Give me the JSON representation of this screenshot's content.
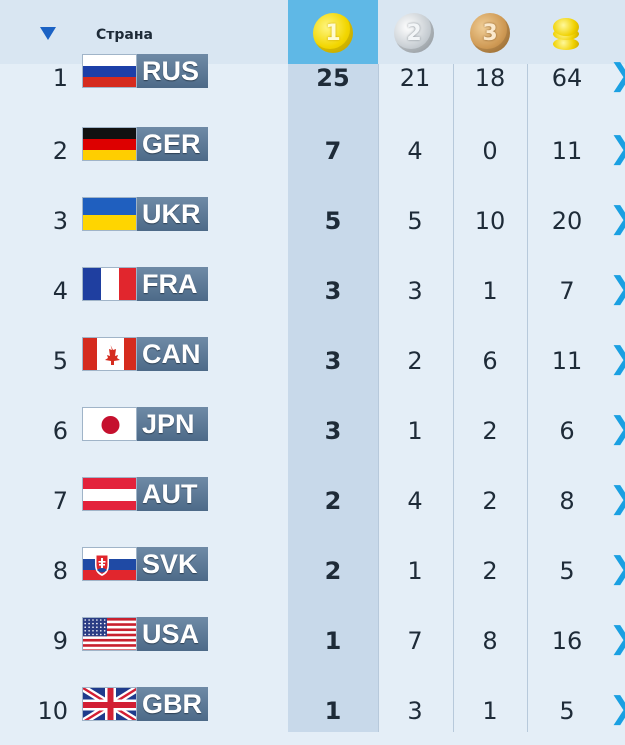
{
  "header": {
    "sort_icon": "triangle-down-icon",
    "country_label": "Страна",
    "medals": [
      {
        "name": "gold-medal-icon",
        "glyph": "1",
        "color": "#f2d600"
      },
      {
        "name": "silver-medal-icon",
        "glyph": "2",
        "color": "#c9cfd4"
      },
      {
        "name": "bronze-medal-icon",
        "glyph": "3",
        "color": "#cf9a55"
      },
      {
        "name": "total-medals-icon",
        "glyph": "",
        "color": "#f0d100"
      }
    ]
  },
  "colors": {
    "background": "#e4eef7",
    "gold_column": "#c8d9ea",
    "gold_header": "#5fb8e6",
    "accent_chevron": "#1aa0e2",
    "code_badge": "#5a7696"
  },
  "rows": [
    {
      "rank": "1",
      "code": "RUS",
      "flag": "russia",
      "gold": "25",
      "silver": "21",
      "bronze": "18",
      "total": "64"
    },
    {
      "rank": "2",
      "code": "GER",
      "flag": "germany",
      "gold": "7",
      "silver": "4",
      "bronze": "0",
      "total": "11"
    },
    {
      "rank": "3",
      "code": "UKR",
      "flag": "ukraine",
      "gold": "5",
      "silver": "5",
      "bronze": "10",
      "total": "20"
    },
    {
      "rank": "4",
      "code": "FRA",
      "flag": "france",
      "gold": "3",
      "silver": "3",
      "bronze": "1",
      "total": "7"
    },
    {
      "rank": "5",
      "code": "CAN",
      "flag": "canada",
      "gold": "3",
      "silver": "2",
      "bronze": "6",
      "total": "11"
    },
    {
      "rank": "6",
      "code": "JPN",
      "flag": "japan",
      "gold": "3",
      "silver": "1",
      "bronze": "2",
      "total": "6"
    },
    {
      "rank": "7",
      "code": "AUT",
      "flag": "austria",
      "gold": "2",
      "silver": "4",
      "bronze": "2",
      "total": "8"
    },
    {
      "rank": "8",
      "code": "SVK",
      "flag": "slovakia",
      "gold": "2",
      "silver": "1",
      "bronze": "2",
      "total": "5"
    },
    {
      "rank": "9",
      "code": "USA",
      "flag": "usa",
      "gold": "1",
      "silver": "7",
      "bronze": "8",
      "total": "16"
    },
    {
      "rank": "10",
      "code": "GBR",
      "flag": "uk",
      "gold": "1",
      "silver": "3",
      "bronze": "1",
      "total": "5"
    }
  ],
  "row_action_icon": "chevron-right-icon",
  "chevron_glyph": "❯"
}
